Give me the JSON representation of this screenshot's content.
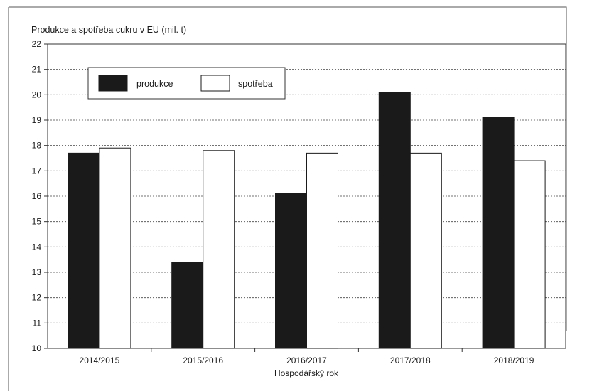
{
  "chart_data": {
    "type": "bar",
    "title": "Produkce a spotřeba cukru v EU (mil. t)",
    "xlabel": "Hospodářský rok",
    "ylabel": "",
    "categories": [
      "2014/2015",
      "2015/2016",
      "2016/2017",
      "2017/2018",
      "2018/2019"
    ],
    "series": [
      {
        "name": "produkce",
        "values": [
          17.7,
          13.4,
          16.1,
          20.1,
          19.1
        ],
        "color": "#1a1a1a"
      },
      {
        "name": "spotřeba",
        "values": [
          17.9,
          17.8,
          17.7,
          17.7,
          17.4
        ],
        "color": "#ffffff"
      }
    ],
    "ylim": [
      10,
      22
    ],
    "yticks": [
      "10",
      "11",
      "12",
      "13",
      "14",
      "15",
      "16",
      "17",
      "18",
      "19",
      "20",
      "21",
      "22"
    ],
    "grid": "dashed-horizontal",
    "legend_position": "top-left"
  }
}
